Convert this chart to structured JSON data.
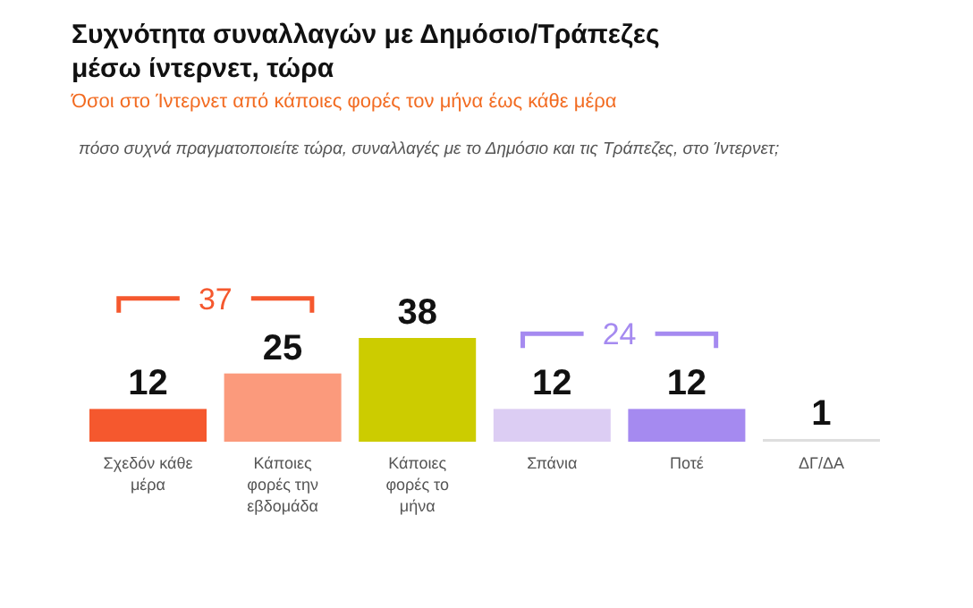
{
  "chart_data": {
    "type": "bar",
    "title": "Συχνότητα συναλλαγών με Δημόσιο/Τράπεζες μέσω ίντερνετ, τώρα",
    "subtitle": "Όσοι στο Ίντερνετ από κάποιες φορές τον μήνα έως κάθε μέρα",
    "annotations": [
      "πόσο συχνά πραγματοποιείτε τώρα, συναλλαγές με το Δημόσιο και τις Τράπεζες, στο Ίντερνετ;",
      "37",
      "24"
    ],
    "categories": [
      "Σχεδόν κάθε μέρα",
      "Κάποιες φορές την εβδομάδα",
      "Κάποιες φορές το μήνα",
      "Σπάνια",
      "Ποτέ",
      "ΔΓ/ΔΑ"
    ],
    "values": [
      12,
      25,
      38,
      12,
      12,
      1
    ],
    "colors": [
      "#f5582e",
      "#fb9a7c",
      "#cccc00",
      "#dccdf3",
      "#a58af0",
      "#dedede"
    ],
    "data_labels": true
  }
}
